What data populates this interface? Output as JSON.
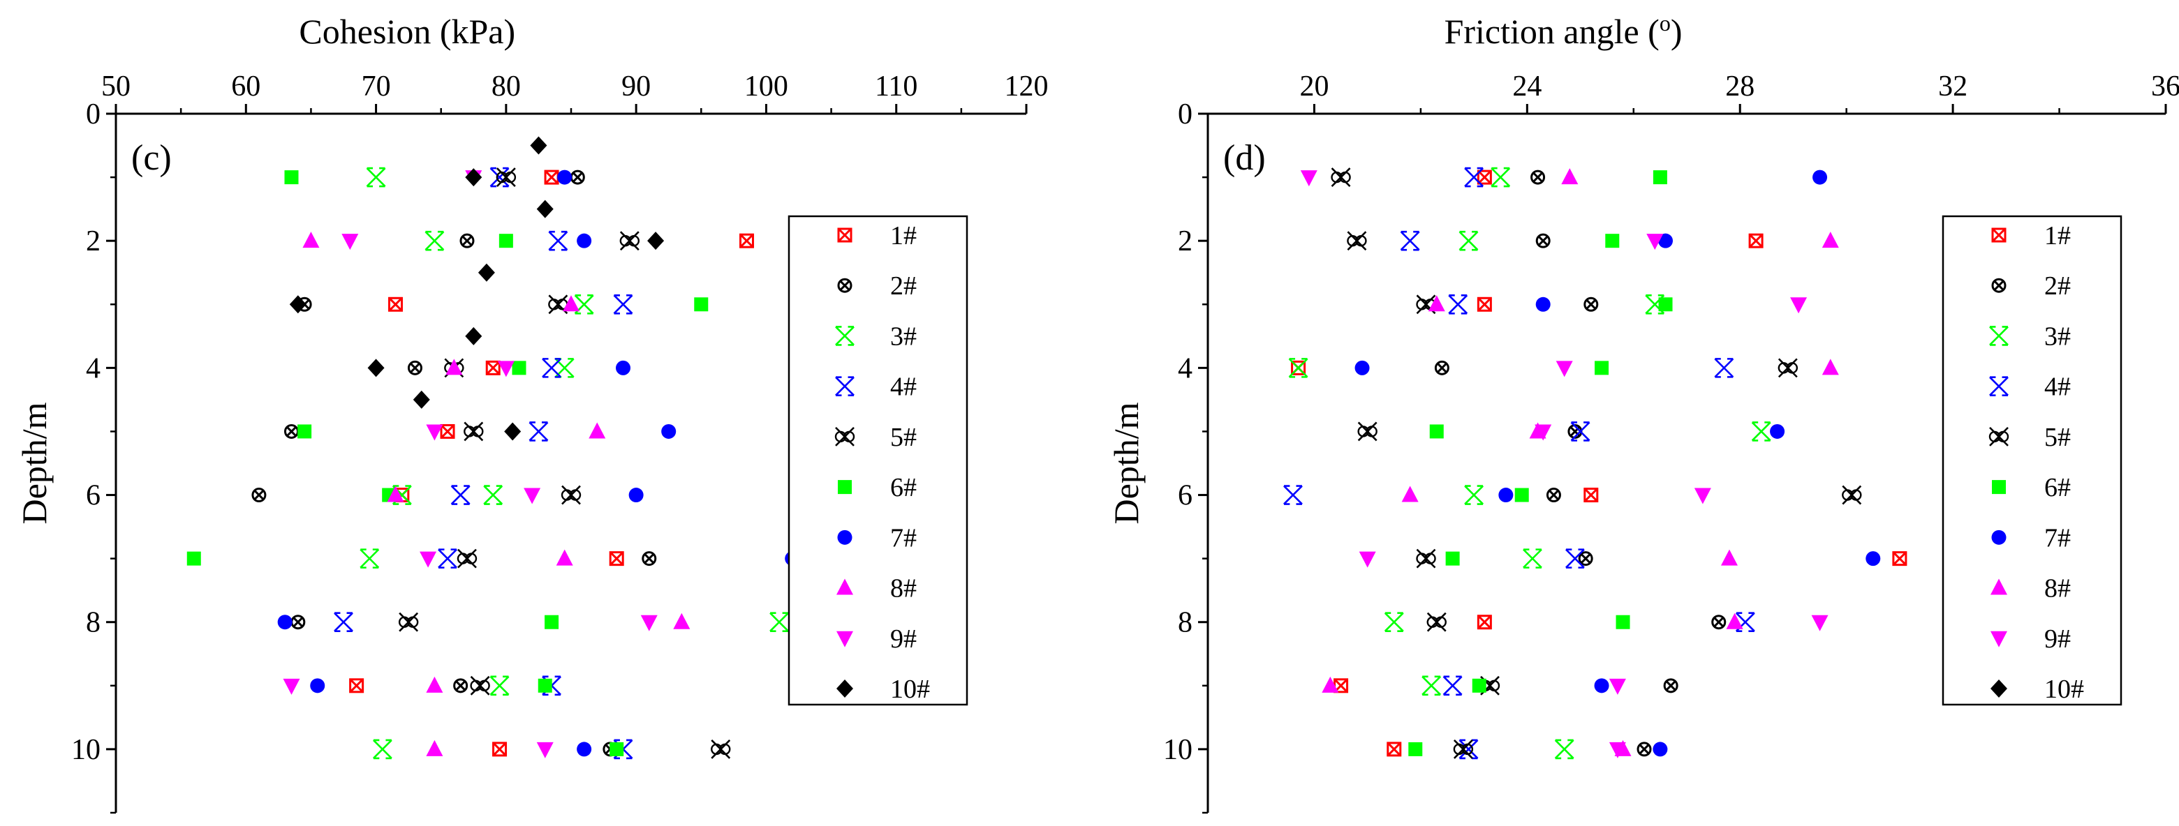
{
  "figure": {
    "colors": {
      "1#": "#ff0000",
      "2#": "#000000",
      "3#": "#00ff00",
      "4#": "#0000ff",
      "5#": "#000000",
      "6#": "#00ff00",
      "7#": "#0000ff",
      "8#": "#ff00ff",
      "9#": "#ff00ff",
      "10#": "#000000"
    },
    "markers": {
      "1#": "boxed-x",
      "2#": "circled-x",
      "3#": "hourglass-x",
      "4#": "hourglass-x",
      "5#": "double-circled-x",
      "6#": "square",
      "7#": "circle",
      "8#": "triangle-up",
      "9#": "triangle-down",
      "10#": "diamond"
    }
  },
  "chart_data": [
    {
      "type": "scatter",
      "panel_label": "(c)",
      "title": "",
      "xlabel": "Cohesion (kPa)",
      "ylabel": "Depth/m",
      "xlim": [
        50,
        120
      ],
      "ylim": [
        0,
        11
      ],
      "y_inverted": true,
      "x_axis_position": "top",
      "xticks": [
        50,
        60,
        70,
        80,
        90,
        100,
        110,
        120
      ],
      "yticks": [
        0,
        2,
        4,
        6,
        8,
        10
      ],
      "grid": false,
      "legend_position": "right",
      "series": [
        {
          "name": "1#",
          "points": [
            [
              83.5,
              1
            ],
            [
              98.5,
              2
            ],
            [
              71.5,
              3
            ],
            [
              79,
              4
            ],
            [
              75.5,
              5
            ],
            [
              72,
              6
            ],
            [
              88.5,
              7
            ],
            [
              68.5,
              9
            ],
            [
              79.5,
              10
            ]
          ]
        },
        {
          "name": "2#",
          "points": [
            [
              85.5,
              1
            ],
            [
              77,
              2
            ],
            [
              64.5,
              3
            ],
            [
              73,
              4
            ],
            [
              63.5,
              5
            ],
            [
              61,
              6
            ],
            [
              91,
              7
            ],
            [
              64,
              8
            ],
            [
              76.5,
              9
            ],
            [
              88,
              10
            ]
          ]
        },
        {
          "name": "3#",
          "points": [
            [
              70,
              1
            ],
            [
              74.5,
              2
            ],
            [
              86,
              3
            ],
            [
              84.5,
              4
            ],
            [
              72,
              6
            ],
            [
              79,
              6
            ],
            [
              69.5,
              7
            ],
            [
              101,
              8
            ],
            [
              79.5,
              9
            ],
            [
              70.5,
              10
            ]
          ]
        },
        {
          "name": "4#",
          "points": [
            [
              79.5,
              1
            ],
            [
              84,
              2
            ],
            [
              89,
              3
            ],
            [
              83.5,
              4
            ],
            [
              82.5,
              5
            ],
            [
              76.5,
              6
            ],
            [
              75.5,
              7
            ],
            [
              67.5,
              8
            ],
            [
              83.5,
              9
            ],
            [
              89,
              10
            ]
          ]
        },
        {
          "name": "5#",
          "points": [
            [
              80,
              1
            ],
            [
              89.5,
              2
            ],
            [
              84,
              3
            ],
            [
              76,
              4
            ],
            [
              77.5,
              5
            ],
            [
              85,
              6
            ],
            [
              77,
              7
            ],
            [
              72.5,
              8
            ],
            [
              78,
              9
            ],
            [
              96.5,
              10
            ]
          ]
        },
        {
          "name": "6#",
          "points": [
            [
              63.5,
              1
            ],
            [
              80,
              2
            ],
            [
              95,
              3
            ],
            [
              81,
              4
            ],
            [
              64.5,
              5
            ],
            [
              71,
              6
            ],
            [
              56,
              7
            ],
            [
              83.5,
              8
            ],
            [
              83,
              9
            ],
            [
              88.5,
              10
            ]
          ]
        },
        {
          "name": "7#",
          "points": [
            [
              84.5,
              1
            ],
            [
              86,
              2
            ],
            [
              89,
              4
            ],
            [
              92.5,
              5
            ],
            [
              90,
              6
            ],
            [
              102,
              7
            ],
            [
              63,
              8
            ],
            [
              65.5,
              9
            ],
            [
              86,
              10
            ]
          ]
        },
        {
          "name": "8#",
          "points": [
            [
              65,
              2
            ],
            [
              85,
              3
            ],
            [
              76,
              4
            ],
            [
              87,
              5
            ],
            [
              71.5,
              6
            ],
            [
              84.5,
              7
            ],
            [
              93.5,
              8
            ],
            [
              74.5,
              9
            ],
            [
              74.5,
              10
            ]
          ]
        },
        {
          "name": "9#",
          "points": [
            [
              77.5,
              1
            ],
            [
              68,
              2
            ],
            [
              80,
              4
            ],
            [
              74.5,
              5
            ],
            [
              82,
              6
            ],
            [
              74,
              7
            ],
            [
              91,
              8
            ],
            [
              63.5,
              9
            ],
            [
              83,
              10
            ]
          ]
        },
        {
          "name": "10#",
          "points": [
            [
              82.5,
              0.5
            ],
            [
              77.5,
              1
            ],
            [
              83,
              1.5
            ],
            [
              91.5,
              2
            ],
            [
              78.5,
              2.5
            ],
            [
              64,
              3
            ],
            [
              77.5,
              3.5
            ],
            [
              70,
              4
            ],
            [
              73.5,
              4.5
            ],
            [
              80.5,
              5
            ]
          ]
        }
      ]
    },
    {
      "type": "scatter",
      "panel_label": "(d)",
      "title": "",
      "xlabel": "Friction angle (",
      "xlabel_superscript": "o",
      "xlabel_suffix": ")",
      "ylabel": "Depth/m",
      "xlim": [
        18,
        36
      ],
      "ylim": [
        0,
        11
      ],
      "y_inverted": true,
      "x_axis_position": "top",
      "xticks": [
        20,
        24,
        28,
        32,
        36
      ],
      "yticks": [
        0,
        2,
        4,
        6,
        8,
        10
      ],
      "grid": false,
      "legend_position": "right",
      "series": [
        {
          "name": "1#",
          "points": [
            [
              23.2,
              1
            ],
            [
              28.3,
              2
            ],
            [
              23.2,
              3
            ],
            [
              19.7,
              4
            ],
            [
              25.2,
              6
            ],
            [
              31,
              7
            ],
            [
              23.2,
              8
            ],
            [
              20.5,
              9
            ],
            [
              21.5,
              10
            ]
          ]
        },
        {
          "name": "2#",
          "points": [
            [
              24.2,
              1
            ],
            [
              24.3,
              2
            ],
            [
              25.2,
              3
            ],
            [
              22.4,
              4
            ],
            [
              24.9,
              5
            ],
            [
              24.5,
              6
            ],
            [
              25.1,
              7
            ],
            [
              27.6,
              8
            ],
            [
              26.7,
              9
            ],
            [
              26.2,
              10
            ]
          ]
        },
        {
          "name": "3#",
          "points": [
            [
              23.5,
              1
            ],
            [
              22.9,
              2
            ],
            [
              26.4,
              3
            ],
            [
              19.7,
              4
            ],
            [
              28.4,
              5
            ],
            [
              23,
              6
            ],
            [
              24.1,
              7
            ],
            [
              21.5,
              8
            ],
            [
              22.2,
              9
            ],
            [
              24.7,
              10
            ]
          ]
        },
        {
          "name": "4#",
          "points": [
            [
              23,
              1
            ],
            [
              21.8,
              2
            ],
            [
              22.7,
              3
            ],
            [
              27.7,
              4
            ],
            [
              25,
              5
            ],
            [
              19.6,
              6
            ],
            [
              24.9,
              7
            ],
            [
              28.1,
              8
            ],
            [
              22.6,
              9
            ],
            [
              22.9,
              10
            ]
          ]
        },
        {
          "name": "5#",
          "points": [
            [
              20.5,
              1
            ],
            [
              20.8,
              2
            ],
            [
              22.1,
              3
            ],
            [
              28.9,
              4
            ],
            [
              21,
              5
            ],
            [
              30.1,
              6
            ],
            [
              22.1,
              7
            ],
            [
              22.3,
              8
            ],
            [
              23.3,
              9
            ],
            [
              22.8,
              10
            ]
          ]
        },
        {
          "name": "6#",
          "points": [
            [
              26.5,
              1
            ],
            [
              25.6,
              2
            ],
            [
              26.6,
              3
            ],
            [
              25.4,
              4
            ],
            [
              22.3,
              5
            ],
            [
              23.9,
              6
            ],
            [
              22.6,
              7
            ],
            [
              25.8,
              8
            ],
            [
              23.1,
              9
            ],
            [
              21.9,
              10
            ]
          ]
        },
        {
          "name": "7#",
          "points": [
            [
              29.5,
              1
            ],
            [
              26.6,
              2
            ],
            [
              24.3,
              3
            ],
            [
              20.9,
              4
            ],
            [
              28.7,
              5
            ],
            [
              23.6,
              6
            ],
            [
              30.5,
              7
            ],
            [
              25.4,
              9
            ],
            [
              26.5,
              10
            ]
          ]
        },
        {
          "name": "8#",
          "points": [
            [
              24.8,
              1
            ],
            [
              29.7,
              2
            ],
            [
              22.3,
              3
            ],
            [
              29.7,
              4
            ],
            [
              24.2,
              5
            ],
            [
              21.8,
              6
            ],
            [
              27.8,
              7
            ],
            [
              27.9,
              8
            ],
            [
              20.3,
              9
            ],
            [
              25.8,
              10
            ]
          ]
        },
        {
          "name": "9#",
          "points": [
            [
              19.9,
              1
            ],
            [
              26.4,
              2
            ],
            [
              29.1,
              3
            ],
            [
              24.7,
              4
            ],
            [
              24.3,
              5
            ],
            [
              27.3,
              6
            ],
            [
              21,
              7
            ],
            [
              29.5,
              8
            ],
            [
              25.7,
              9
            ],
            [
              25.7,
              10
            ]
          ]
        }
      ]
    }
  ]
}
